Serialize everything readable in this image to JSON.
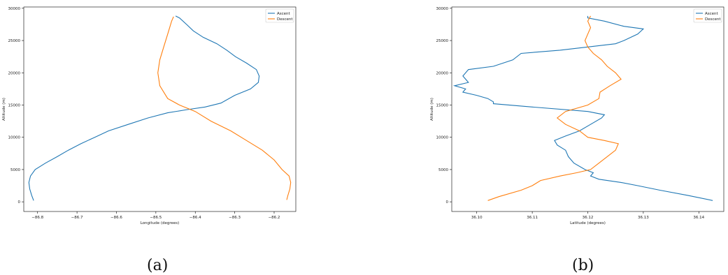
{
  "captions": [
    "(a)",
    "(b)"
  ],
  "chart_data": [
    {
      "type": "line",
      "title": "",
      "xlabel": "Longitude (degrees)",
      "ylabel": "Altitude (m)",
      "xlim": [
        -86.835,
        -86.145
      ],
      "ylim": [
        -1500,
        30200
      ],
      "xticks": [
        -86.8,
        -86.7,
        -86.6,
        -86.5,
        -86.4,
        -86.3,
        -86.2
      ],
      "xtick_labels": [
        "−86.8",
        "−86.7",
        "−86.6",
        "−86.5",
        "−86.4",
        "−86.3",
        "−86.2"
      ],
      "yticks": [
        0,
        5000,
        10000,
        15000,
        20000,
        25000,
        30000
      ],
      "ytick_labels": [
        "0",
        "5000",
        "10000",
        "15000",
        "20000",
        "25000",
        "30000"
      ],
      "grid": false,
      "legend_position": "top-right",
      "series": [
        {
          "name": "Ascent",
          "color": "#1f77b4",
          "points": [
            [
              -86.81,
              200
            ],
            [
              -86.815,
              1000
            ],
            [
              -86.82,
              2000
            ],
            [
              -86.822,
              3000
            ],
            [
              -86.818,
              4000
            ],
            [
              -86.806,
              5000
            ],
            [
              -86.78,
              6000
            ],
            [
              -86.75,
              7000
            ],
            [
              -86.722,
              8000
            ],
            [
              -86.69,
              9000
            ],
            [
              -86.655,
              10000
            ],
            [
              -86.62,
              11000
            ],
            [
              -86.57,
              12000
            ],
            [
              -86.52,
              13000
            ],
            [
              -86.47,
              13800
            ],
            [
              -86.42,
              14300
            ],
            [
              -86.375,
              14700
            ],
            [
              -86.335,
              15300
            ],
            [
              -86.3,
              16500
            ],
            [
              -86.26,
              17500
            ],
            [
              -86.24,
              18500
            ],
            [
              -86.238,
              19500
            ],
            [
              -86.245,
              20500
            ],
            [
              -86.27,
              21500
            ],
            [
              -86.298,
              22500
            ],
            [
              -86.32,
              23500
            ],
            [
              -86.345,
              24500
            ],
            [
              -86.38,
              25500
            ],
            [
              -86.405,
              26500
            ],
            [
              -86.422,
              27500
            ],
            [
              -86.44,
              28500
            ],
            [
              -86.45,
              28800
            ]
          ]
        },
        {
          "name": "Descent",
          "color": "#ff7f0e",
          "points": [
            [
              -86.455,
              28700
            ],
            [
              -86.46,
              28000
            ],
            [
              -86.47,
              26000
            ],
            [
              -86.48,
              24000
            ],
            [
              -86.49,
              22000
            ],
            [
              -86.495,
              20000
            ],
            [
              -86.49,
              18000
            ],
            [
              -86.47,
              16000
            ],
            [
              -86.44,
              15000
            ],
            [
              -86.4,
              14000
            ],
            [
              -86.36,
              12500
            ],
            [
              -86.31,
              11000
            ],
            [
              -86.27,
              9500
            ],
            [
              -86.23,
              8000
            ],
            [
              -86.2,
              6500
            ],
            [
              -86.18,
              5000
            ],
            [
              -86.162,
              4000
            ],
            [
              -86.158,
              3000
            ],
            [
              -86.16,
              2000
            ],
            [
              -86.165,
              1000
            ],
            [
              -86.168,
              300
            ]
          ]
        }
      ]
    },
    {
      "type": "line",
      "title": "",
      "xlabel": "Latitude (degrees)",
      "ylabel": "Altitude (m)",
      "xlim": [
        36.0955,
        36.1445
      ],
      "ylim": [
        -1500,
        30200
      ],
      "xticks": [
        36.1,
        36.11,
        36.12,
        36.13,
        36.14
      ],
      "xtick_labels": [
        "36.10",
        "36.11",
        "36.12",
        "36.13",
        "36.14"
      ],
      "yticks": [
        0,
        5000,
        10000,
        15000,
        20000,
        25000,
        30000
      ],
      "ytick_labels": [
        "0",
        "5000",
        "10000",
        "15000",
        "20000",
        "25000",
        "30000"
      ],
      "grid": false,
      "legend_position": "top-right",
      "series": [
        {
          "name": "Ascent",
          "color": "#1f77b4",
          "points": [
            [
              36.1425,
              200
            ],
            [
              36.138,
              1000
            ],
            [
              36.133,
              1800
            ],
            [
              36.129,
              2500
            ],
            [
              36.126,
              3000
            ],
            [
              36.122,
              3500
            ],
            [
              36.1205,
              4000
            ],
            [
              36.121,
              4500
            ],
            [
              36.1195,
              5000
            ],
            [
              36.1175,
              6000
            ],
            [
              36.1165,
              7000
            ],
            [
              36.116,
              8000
            ],
            [
              36.1145,
              8800
            ],
            [
              36.114,
              9500
            ],
            [
              36.116,
              10200
            ],
            [
              36.1185,
              11000
            ],
            [
              36.1205,
              12000
            ],
            [
              36.1225,
              13000
            ],
            [
              36.123,
              13500
            ],
            [
              36.12,
              14000
            ],
            [
              36.11,
              14700
            ],
            [
              36.103,
              15200
            ],
            [
              36.103,
              15500
            ],
            [
              36.102,
              16000
            ],
            [
              36.1,
              16500
            ],
            [
              36.0975,
              17000
            ],
            [
              36.098,
              17500
            ],
            [
              36.096,
              18000
            ],
            [
              36.0985,
              18500
            ],
            [
              36.0975,
              19500
            ],
            [
              36.0985,
              20500
            ],
            [
              36.103,
              21000
            ],
            [
              36.1065,
              22000
            ],
            [
              36.108,
              23000
            ],
            [
              36.115,
              23500
            ],
            [
              36.125,
              24500
            ],
            [
              36.1265,
              25000
            ],
            [
              36.129,
              26000
            ],
            [
              36.13,
              26800
            ],
            [
              36.1265,
              27200
            ],
            [
              36.123,
              28000
            ],
            [
              36.12,
              28500
            ],
            [
              36.12,
              28800
            ]
          ]
        },
        {
          "name": "Descent",
          "color": "#ff7f0e",
          "points": [
            [
              36.102,
              200
            ],
            [
              36.104,
              800
            ],
            [
              36.108,
              1800
            ],
            [
              36.11,
              2500
            ],
            [
              36.1115,
              3300
            ],
            [
              36.115,
              4000
            ],
            [
              36.118,
              4500
            ],
            [
              36.1205,
              5000
            ],
            [
              36.122,
              6000
            ],
            [
              36.1235,
              7000
            ],
            [
              36.125,
              8000
            ],
            [
              36.1255,
              9000
            ],
            [
              36.123,
              9500
            ],
            [
              36.12,
              10000
            ],
            [
              36.1185,
              11000
            ],
            [
              36.116,
              12000
            ],
            [
              36.1145,
              13000
            ],
            [
              36.116,
              14000
            ],
            [
              36.12,
              15000
            ],
            [
              36.122,
              16000
            ],
            [
              36.1222,
              17000
            ],
            [
              36.124,
              18000
            ],
            [
              36.126,
              19000
            ],
            [
              36.125,
              20000
            ],
            [
              36.1235,
              21000
            ],
            [
              36.1225,
              22000
            ],
            [
              36.121,
              23000
            ],
            [
              36.12,
              24000
            ],
            [
              36.1195,
              25000
            ],
            [
              36.12,
              26000
            ],
            [
              36.1205,
              27000
            ],
            [
              36.12,
              28000
            ],
            [
              36.1205,
              28800
            ]
          ]
        }
      ]
    }
  ]
}
